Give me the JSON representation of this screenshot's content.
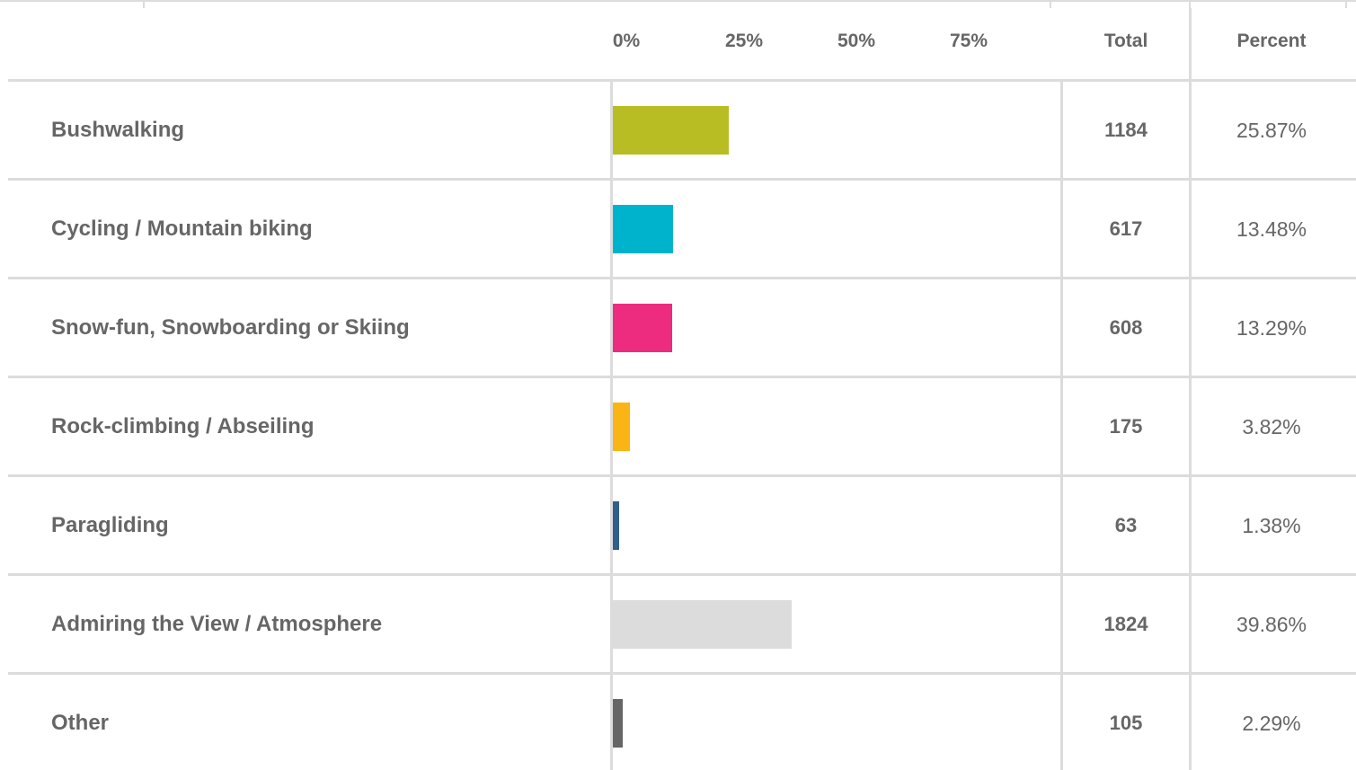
{
  "chart_data": {
    "type": "bar",
    "orientation": "horizontal",
    "x_ticks": [
      "0%",
      "25%",
      "50%",
      "75%"
    ],
    "columns": {
      "total": "Total",
      "percent": "Percent"
    },
    "categories": [
      "Bushwalking",
      "Cycling / Mountain biking",
      "Snow-fun, Snowboarding or Skiing",
      "Rock-climbing / Abseiling",
      "Paragliding",
      "Admiring the View / Atmosphere",
      "Other"
    ],
    "rows": [
      {
        "label": "Bushwalking",
        "total": "1184",
        "percent": "25.87%",
        "value": 25.87,
        "color": "#b8bd24"
      },
      {
        "label": "Cycling / Mountain biking",
        "total": "617",
        "percent": "13.48%",
        "value": 13.48,
        "color": "#00b3cc"
      },
      {
        "label": "Snow-fun, Snowboarding or Skiing",
        "total": "608",
        "percent": "13.29%",
        "value": 13.29,
        "color": "#ed2b7f"
      },
      {
        "label": "Rock-climbing / Abseiling",
        "total": "175",
        "percent": "3.82%",
        "value": 3.82,
        "color": "#fbb415"
      },
      {
        "label": "Paragliding",
        "total": "63",
        "percent": "1.38%",
        "value": 1.38,
        "color": "#2f5f8a"
      },
      {
        "label": "Admiring the View / Atmosphere",
        "total": "1824",
        "percent": "39.86%",
        "value": 39.86,
        "color": "#dcdcdc"
      },
      {
        "label": "Other",
        "total": "105",
        "percent": "2.29%",
        "value": 2.29,
        "color": "#666666"
      }
    ],
    "xlim": [
      0,
      100
    ],
    "grid": false
  }
}
